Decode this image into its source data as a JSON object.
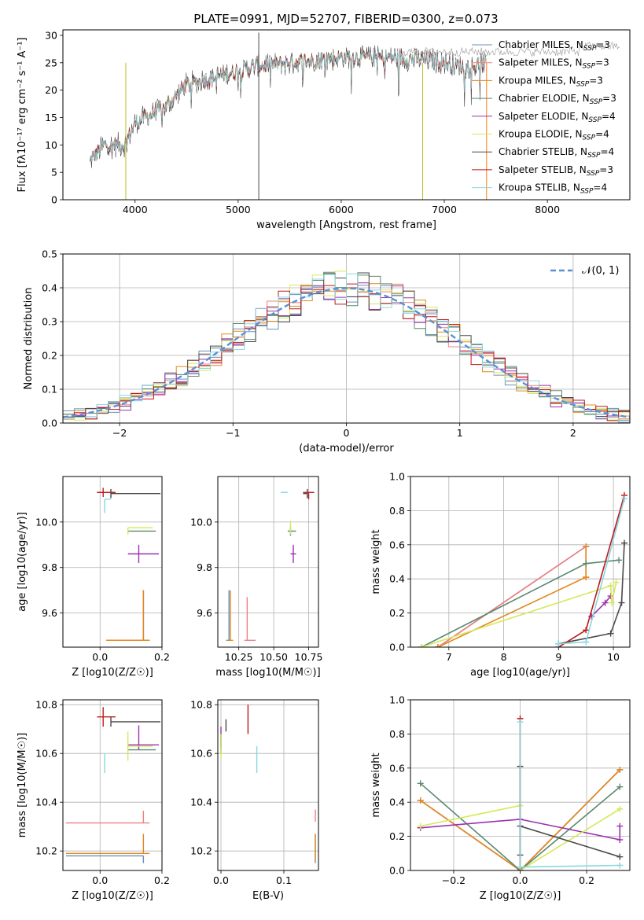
{
  "figure_title": "PLATE=0991, MJD=52707, FIBERID=0300, z=0.073",
  "series_colors": [
    "#1f77b4",
    "#ff7f0e",
    "#2ca02c",
    "#d62728",
    "#9467bd",
    "#8c564b",
    "#e377c2",
    "#7f7f7f",
    "#bcbd22",
    "#17becf"
  ],
  "models": [
    {
      "name": "Chabrier MILES",
      "nssp": "3",
      "color": "#6b8fb8"
    },
    {
      "name": "Salpeter MILES",
      "nssp": "3",
      "color": "#f08080"
    },
    {
      "name": "Kroupa MILES",
      "nssp": "3",
      "color": "#e08a1e"
    },
    {
      "name": "Chabrier ELODIE",
      "nssp": "3",
      "color": "#5a8a6e"
    },
    {
      "name": "Salpeter ELODIE",
      "nssp": "4",
      "color": "#9b30b0"
    },
    {
      "name": "Kroupa ELODIE",
      "nssp": "4",
      "color": "#d6e85a"
    },
    {
      "name": "Chabrier STELIB",
      "nssp": "4",
      "color": "#4a4a4a"
    },
    {
      "name": "Salpeter STELIB",
      "nssp": "3",
      "color": "#c01818"
    },
    {
      "name": "Kroupa STELIB",
      "nssp": "4",
      "color": "#88d8e0"
    }
  ],
  "chart_data": [
    {
      "id": "spectrum",
      "type": "line",
      "xlabel": "wavelength [Angstrom, rest frame]",
      "ylabel": "Flux [fλ10⁻¹⁷ erg cm⁻² s⁻¹ A⁻¹]",
      "xlim": [
        3300,
        8800
      ],
      "ylim": [
        0,
        31
      ],
      "xticks": [
        4000,
        5000,
        6000,
        7000,
        8000
      ],
      "yticks": [
        0,
        5,
        10,
        15,
        20,
        25,
        30
      ],
      "legend": "right",
      "spectrum_range": [
        3560,
        7410
      ],
      "spectrum_shape": [
        [
          3560,
          7
        ],
        [
          3700,
          10
        ],
        [
          3900,
          10
        ],
        [
          4000,
          14
        ],
        [
          4100,
          15
        ],
        [
          4300,
          17
        ],
        [
          4500,
          21
        ],
        [
          4700,
          22
        ],
        [
          5000,
          23.5
        ],
        [
          5200,
          24.5
        ],
        [
          5500,
          25
        ],
        [
          6000,
          26
        ],
        [
          6500,
          26
        ],
        [
          6800,
          25.5
        ],
        [
          7000,
          25
        ],
        [
          7200,
          24
        ],
        [
          7410,
          25
        ]
      ]
    },
    {
      "id": "residual-hist",
      "type": "line",
      "xlabel": "(data-model)/error",
      "ylabel": "Normed distribution",
      "xlim": [
        -2.5,
        2.5
      ],
      "ylim": [
        0,
        0.5
      ],
      "xticks": [
        -2,
        -1,
        0,
        1,
        2
      ],
      "yticks": [
        0.0,
        0.1,
        0.2,
        0.3,
        0.4,
        0.5
      ],
      "legend": "top-right",
      "legend_label": "N(0,1)",
      "bin_width": 0.1,
      "gaussian": {
        "mean": 0,
        "sigma": 1
      }
    },
    {
      "id": "age-vs-z",
      "type": "scatter",
      "xlabel": "Z [log10(Z/Z☉)]",
      "ylabel": "age [log10(age/yr)]",
      "xlim": [
        -0.12,
        0.2
      ],
      "ylim": [
        9.45,
        10.2
      ],
      "xticks": [
        0.0,
        0.2
      ],
      "yticks": [
        9.6,
        9.8,
        10.0
      ],
      "points": [
        {
          "model": "Chabrier MILES",
          "x": 0.14,
          "y": 9.48,
          "xerr": [
            0.12,
            0.02
          ],
          "yerr": [
            0.0,
            0.22
          ]
        },
        {
          "model": "Salpeter MILES",
          "x": 0.14,
          "y": 9.48,
          "xerr": [
            0.12,
            0.02
          ],
          "yerr": [
            0.0,
            0.22
          ]
        },
        {
          "model": "Kroupa MILES",
          "x": 0.14,
          "y": 9.48,
          "xerr": [
            0.12,
            0.02
          ],
          "yerr": [
            0.0,
            0.22
          ]
        },
        {
          "model": "Chabrier ELODIE",
          "x": 0.09,
          "y": 9.96,
          "xerr": [
            0.0,
            0.09
          ],
          "yerr": [
            0.0,
            0.0
          ]
        },
        {
          "model": "Salpeter ELODIE",
          "x": 0.125,
          "y": 9.86,
          "xerr": [
            0.035,
            0.065
          ],
          "yerr": [
            0.04,
            0.04
          ]
        },
        {
          "model": "Kroupa ELODIE",
          "x": 0.09,
          "y": 9.975,
          "xerr": [
            0.0,
            0.08
          ],
          "yerr": [
            0.03,
            0.0
          ]
        },
        {
          "model": "Chabrier STELIB",
          "x": 0.035,
          "y": 10.125,
          "xerr": [
            0.0,
            0.16
          ],
          "yerr": [
            0.02,
            0.02
          ]
        },
        {
          "model": "Salpeter STELIB",
          "x": 0.01,
          "y": 10.13,
          "xerr": [
            0.02,
            0.04
          ],
          "yerr": [
            0.02,
            0.02
          ]
        },
        {
          "model": "Kroupa STELIB",
          "x": 0.015,
          "y": 10.1,
          "xerr": [
            0.0,
            0.02
          ],
          "yerr": [
            0.06,
            0.0
          ]
        }
      ]
    },
    {
      "id": "age-vs-mass",
      "type": "scatter",
      "xlabel": "mass [log10(M/M☉)]",
      "ylabel": "",
      "xlim": [
        10.1,
        10.82
      ],
      "ylim": [
        9.45,
        10.2
      ],
      "xticks": [
        10.25,
        10.5,
        10.75
      ],
      "yticks": [
        9.6,
        9.8,
        10.0
      ],
      "points": [
        {
          "model": "Chabrier MILES",
          "x": 10.18,
          "y": 9.48,
          "xerr": [
            0.02,
            0.0
          ],
          "yerr": [
            0.0,
            0.22
          ]
        },
        {
          "model": "Salpeter MILES",
          "x": 10.31,
          "y": 9.48,
          "xerr": [
            0.02,
            0.06
          ],
          "yerr": [
            0.0,
            0.19
          ]
        },
        {
          "model": "Kroupa MILES",
          "x": 10.19,
          "y": 9.48,
          "xerr": [
            0.02,
            0.02
          ],
          "yerr": [
            0.0,
            0.22
          ]
        },
        {
          "model": "Chabrier ELODIE",
          "x": 10.62,
          "y": 9.96,
          "xerr": [
            0.02,
            0.04
          ],
          "yerr": [
            0.02,
            0.02
          ]
        },
        {
          "model": "Salpeter ELODIE",
          "x": 10.64,
          "y": 9.86,
          "xerr": [
            0.02,
            0.02
          ],
          "yerr": [
            0.04,
            0.04
          ]
        },
        {
          "model": "Kroupa ELODIE",
          "x": 10.62,
          "y": 9.975,
          "xerr": [
            0.0,
            0.0
          ],
          "yerr": [
            0.03,
            0.03
          ]
        },
        {
          "model": "Chabrier STELIB",
          "x": 10.74,
          "y": 10.125,
          "xerr": [
            0.03,
            0.0
          ],
          "yerr": [
            0.02,
            0.02
          ]
        },
        {
          "model": "Salpeter STELIB",
          "x": 10.75,
          "y": 10.13,
          "xerr": [
            0.04,
            0.04
          ],
          "yerr": [
            0.03,
            0.0
          ]
        },
        {
          "model": "Kroupa STELIB",
          "x": 10.6,
          "y": 10.13,
          "xerr": [
            0.05,
            0.0
          ],
          "yerr": [
            0.0,
            0.0
          ]
        }
      ]
    },
    {
      "id": "mass-weight-vs-age",
      "type": "line",
      "xlabel": "age [log10(age/yr)]",
      "ylabel": "mass weight",
      "xlim": [
        6.3,
        10.3
      ],
      "ylim": [
        0,
        1.0
      ],
      "xticks": [
        7,
        8,
        9,
        10
      ],
      "yticks": [
        0.0,
        0.2,
        0.4,
        0.6,
        0.8,
        1.0
      ],
      "series": [
        {
          "model": "Chabrier MILES",
          "x": [
            6.8,
            9.5
          ],
          "y": [
            0.0,
            0.59
          ]
        },
        {
          "model": "Salpeter MILES",
          "x": [
            6.8,
            9.5,
            9.5
          ],
          "y": [
            0.0,
            0.59,
            0.41
          ]
        },
        {
          "model": "Kroupa MILES",
          "x": [
            6.8,
            9.5,
            9.5,
            9.5
          ],
          "y": [
            0.0,
            0.41,
            0.59,
            0.41
          ]
        },
        {
          "model": "Chabrier ELODIE",
          "x": [
            6.5,
            9.5,
            10.1
          ],
          "y": [
            0.0,
            0.49,
            0.51
          ]
        },
        {
          "model": "Salpeter ELODIE",
          "x": [
            9.6,
            9.85,
            9.95
          ],
          "y": [
            0.18,
            0.26,
            0.3
          ]
        },
        {
          "model": "Kroupa ELODIE",
          "x": [
            6.5,
            9.95,
            9.97,
            10.05
          ],
          "y": [
            0.0,
            0.36,
            0.26,
            0.38
          ]
        },
        {
          "model": "Chabrier STELIB",
          "x": [
            9.0,
            9.95,
            10.15,
            10.2
          ],
          "y": [
            0.02,
            0.08,
            0.26,
            0.61
          ]
        },
        {
          "model": "Salpeter STELIB",
          "x": [
            9.0,
            9.5,
            10.2
          ],
          "y": [
            0.0,
            0.1,
            0.89
          ]
        },
        {
          "model": "Kroupa STELIB",
          "x": [
            9.0,
            9.5,
            10.2
          ],
          "y": [
            0.02,
            0.03,
            0.87
          ]
        }
      ]
    },
    {
      "id": "mass-vs-z",
      "type": "scatter",
      "xlabel": "Z [log10(Z/Z☉)]",
      "ylabel": "mass [log10(M/M☉)]",
      "xlim": [
        -0.12,
        0.2
      ],
      "ylim": [
        10.12,
        10.82
      ],
      "xticks": [
        0.0,
        0.2
      ],
      "yticks": [
        10.2,
        10.4,
        10.6,
        10.8
      ],
      "points": [
        {
          "model": "Chabrier MILES",
          "x": 0.14,
          "y": 10.18,
          "xerr": [
            0.25,
            0.0
          ],
          "yerr": [
            0.03,
            0.0
          ]
        },
        {
          "model": "Salpeter MILES",
          "x": 0.14,
          "y": 10.315,
          "xerr": [
            0.25,
            0.02
          ],
          "yerr": [
            0.0,
            0.05
          ]
        },
        {
          "model": "Kroupa MILES",
          "x": 0.14,
          "y": 10.19,
          "xerr": [
            0.25,
            0.02
          ],
          "yerr": [
            0.0,
            0.08
          ]
        },
        {
          "model": "Chabrier ELODIE",
          "x": 0.09,
          "y": 10.615,
          "xerr": [
            0.0,
            0.09
          ],
          "yerr": [
            0.0,
            0.0
          ]
        },
        {
          "model": "Salpeter ELODIE",
          "x": 0.125,
          "y": 10.635,
          "xerr": [
            0.035,
            0.065
          ],
          "yerr": [
            0.02,
            0.08
          ]
        },
        {
          "model": "Kroupa ELODIE",
          "x": 0.09,
          "y": 10.63,
          "xerr": [
            0.0,
            0.08
          ],
          "yerr": [
            0.06,
            0.06
          ]
        },
        {
          "model": "Chabrier STELIB",
          "x": 0.035,
          "y": 10.73,
          "xerr": [
            0.0,
            0.16
          ],
          "yerr": [
            0.02,
            0.02
          ]
        },
        {
          "model": "Salpeter STELIB",
          "x": 0.01,
          "y": 10.75,
          "xerr": [
            0.02,
            0.04
          ],
          "yerr": [
            0.04,
            0.04
          ]
        },
        {
          "model": "Kroupa STELIB",
          "x": 0.015,
          "y": 10.6,
          "xerr": [
            0.0,
            0.0
          ],
          "yerr": [
            0.08,
            0.0
          ]
        }
      ]
    },
    {
      "id": "mass-vs-ebv",
      "type": "scatter",
      "xlabel": "E(B-V)",
      "ylabel": "",
      "xlim": [
        -0.005,
        0.155
      ],
      "ylim": [
        10.12,
        10.82
      ],
      "xticks": [
        0.0,
        0.1
      ],
      "yticks": [
        10.2,
        10.4,
        10.6,
        10.8
      ],
      "points": [
        {
          "model": "Chabrier MILES",
          "x": 0.15,
          "y": 10.19,
          "xerr": [
            0,
            0
          ],
          "yerr": [
            0.04,
            0.08
          ]
        },
        {
          "model": "Salpeter MILES",
          "x": 0.15,
          "y": 10.32,
          "xerr": [
            0,
            0
          ],
          "yerr": [
            0.0,
            0.05
          ]
        },
        {
          "model": "Kroupa MILES",
          "x": 0.15,
          "y": 10.2,
          "xerr": [
            0,
            0
          ],
          "yerr": [
            0.04,
            0.07
          ]
        },
        {
          "model": "Chabrier ELODIE",
          "x": 0.0,
          "y": 10.64,
          "xerr": [
            0,
            0
          ],
          "yerr": [
            0.04,
            0.04
          ]
        },
        {
          "model": "Salpeter ELODIE",
          "x": 0.0,
          "y": 10.66,
          "xerr": [
            0,
            0
          ],
          "yerr": [
            0.04,
            0.05
          ]
        },
        {
          "model": "Kroupa ELODIE",
          "x": 0.0,
          "y": 10.64,
          "xerr": [
            0,
            0
          ],
          "yerr": [
            0.06,
            0.04
          ]
        },
        {
          "model": "Chabrier STELIB",
          "x": 0.008,
          "y": 10.72,
          "xerr": [
            0,
            0
          ],
          "yerr": [
            0.03,
            0.02
          ]
        },
        {
          "model": "Salpeter STELIB",
          "x": 0.043,
          "y": 10.74,
          "xerr": [
            0,
            0
          ],
          "yerr": [
            0.06,
            0.06
          ]
        },
        {
          "model": "Kroupa STELIB",
          "x": 0.057,
          "y": 10.57,
          "xerr": [
            0,
            0
          ],
          "yerr": [
            0.05,
            0.06
          ]
        }
      ]
    },
    {
      "id": "mass-weight-vs-z",
      "type": "line",
      "xlabel": "Z [log10(Z/Z☉)]",
      "ylabel": "mass weight",
      "xlim": [
        -0.33,
        0.33
      ],
      "ylim": [
        0,
        1.0
      ],
      "xticks": [
        -0.2,
        0.0,
        0.2
      ],
      "yticks": [
        0.0,
        0.2,
        0.4,
        0.6,
        0.8,
        1.0
      ],
      "series": [
        {
          "model": "Chabrier MILES",
          "x": [
            -0.3,
            0.0,
            0.3
          ],
          "y": [
            0.41,
            0.0,
            0.59
          ]
        },
        {
          "model": "Salpeter MILES",
          "x": [
            -0.3,
            0.0,
            0.3
          ],
          "y": [
            0.41,
            0.0,
            0.59
          ]
        },
        {
          "model": "Kroupa MILES",
          "x": [
            -0.3,
            0.0,
            0.3
          ],
          "y": [
            0.41,
            0.0,
            0.59
          ]
        },
        {
          "model": "Chabrier ELODIE",
          "x": [
            -0.3,
            0.0,
            0.3
          ],
          "y": [
            0.51,
            0.0,
            0.49
          ]
        },
        {
          "model": "Salpeter ELODIE",
          "x": [
            -0.3,
            0.0,
            0.3,
            0.3
          ],
          "y": [
            0.25,
            0.3,
            0.18,
            0.26
          ]
        },
        {
          "model": "Kroupa ELODIE",
          "x": [
            -0.3,
            0.0,
            0.0,
            0.3
          ],
          "y": [
            0.26,
            0.38,
            0.0,
            0.36
          ]
        },
        {
          "model": "Chabrier STELIB",
          "x": [
            0.0,
            0.0,
            0.0,
            0.3
          ],
          "y": [
            0.61,
            0.09,
            0.26,
            0.08
          ]
        },
        {
          "model": "Salpeter STELIB",
          "x": [
            0.0,
            0.0
          ],
          "y": [
            0.89,
            0.0
          ]
        },
        {
          "model": "Kroupa STELIB",
          "x": [
            0.0,
            0.0,
            0.3
          ],
          "y": [
            0.87,
            0.02,
            0.03
          ]
        }
      ]
    }
  ]
}
